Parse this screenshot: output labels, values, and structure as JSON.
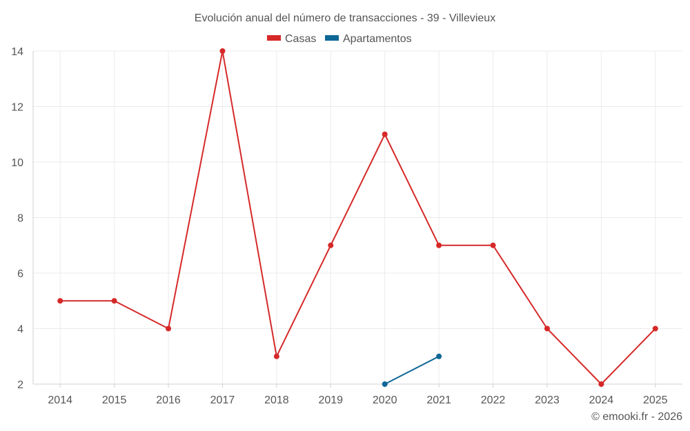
{
  "chart_data": {
    "type": "line",
    "title": "Evolución anual del número de transacciones - 39 - Villevieux",
    "categories": [
      "2014",
      "2015",
      "2016",
      "2017",
      "2018",
      "2019",
      "2020",
      "2021",
      "2022",
      "2023",
      "2024",
      "2025"
    ],
    "ylim": [
      2,
      14
    ],
    "yticks": [
      2,
      4,
      6,
      8,
      10,
      12,
      14
    ],
    "grid": true,
    "legend_position": "top-center",
    "series": [
      {
        "name": "Casas",
        "color": "#d62828",
        "values": [
          5,
          5,
          4,
          14,
          3,
          7,
          11,
          7,
          7,
          4,
          2,
          4
        ]
      },
      {
        "name": "Apartamentos",
        "color": "#0d6797",
        "values": [
          null,
          null,
          null,
          null,
          null,
          null,
          2,
          3,
          null,
          null,
          null,
          null
        ]
      }
    ],
    "credit": "© emooki.fr - 2026"
  }
}
